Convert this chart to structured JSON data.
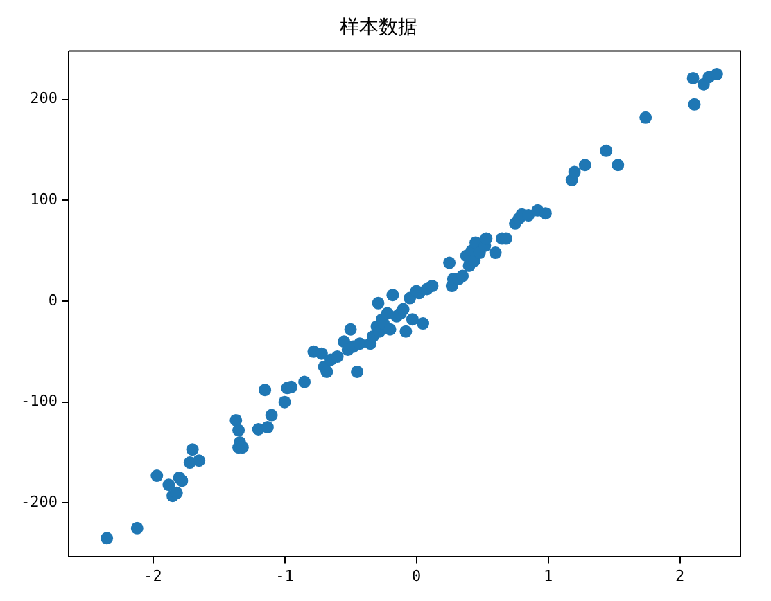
{
  "chart_data": {
    "type": "scatter",
    "title": "样本数据",
    "x": [
      -2.35,
      -2.12,
      -1.97,
      -1.88,
      -1.85,
      -1.82,
      -1.8,
      -1.78,
      -1.72,
      -1.7,
      -1.65,
      -1.37,
      -1.35,
      -1.34,
      -1.35,
      -1.32,
      -1.2,
      -1.15,
      -1.13,
      -1.1,
      -1.0,
      -0.98,
      -0.95,
      -0.85,
      -0.78,
      -0.72,
      -0.7,
      -0.68,
      -0.65,
      -0.6,
      -0.55,
      -0.52,
      -0.5,
      -0.48,
      -0.45,
      -0.43,
      -0.35,
      -0.33,
      -0.3,
      -0.29,
      -0.28,
      -0.26,
      -0.25,
      -0.22,
      -0.2,
      -0.18,
      -0.15,
      -0.12,
      -0.1,
      -0.08,
      -0.05,
      -0.03,
      0.0,
      0.02,
      0.05,
      0.08,
      0.12,
      0.25,
      0.27,
      0.28,
      0.32,
      0.35,
      0.38,
      0.4,
      0.42,
      0.44,
      0.45,
      0.48,
      0.52,
      0.53,
      0.6,
      0.65,
      0.68,
      0.75,
      0.78,
      0.8,
      0.85,
      0.92,
      0.98,
      1.18,
      1.2,
      1.28,
      1.44,
      1.53,
      1.74,
      2.1,
      2.11,
      2.18,
      2.22,
      2.28
    ],
    "series": [
      {
        "color": "#1f77b4",
        "values": [
          -235,
          -225,
          -173,
          -182,
          -193,
          -190,
          -175,
          -178,
          -160,
          -147,
          -158,
          -118,
          -128,
          -140,
          -145,
          -145,
          -127,
          -88,
          -125,
          -113,
          -100,
          -86,
          -85,
          -80,
          -50,
          -52,
          -65,
          -70,
          -58,
          -55,
          -40,
          -48,
          -28,
          -45,
          -70,
          -42,
          -42,
          -35,
          -25,
          -2,
          -30,
          -18,
          -22,
          -12,
          -28,
          6,
          -15,
          -12,
          -8,
          -30,
          3,
          -18,
          10,
          8,
          -22,
          12,
          15,
          38,
          15,
          22,
          22,
          25,
          45,
          35,
          50,
          40,
          58,
          48,
          55,
          62,
          48,
          62,
          62,
          77,
          82,
          86,
          85,
          90,
          87,
          120,
          128,
          135,
          149,
          135,
          182,
          221,
          195,
          215,
          222,
          225
        ]
      }
    ],
    "xlim": [
      -2.64,
      2.46
    ],
    "ylim": [
      -253,
      248
    ],
    "xticks": [
      -2,
      -1,
      0,
      1,
      2
    ],
    "yticks": [
      -200,
      -100,
      0,
      100,
      200
    ],
    "marker": "circle",
    "grid": false,
    "legend": false
  }
}
